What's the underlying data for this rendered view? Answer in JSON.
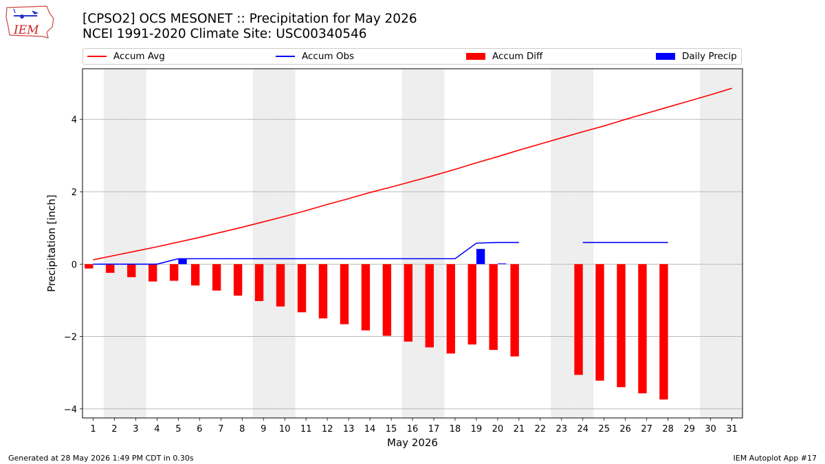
{
  "title_line1": "[CPSO2] OCS MESONET :: Precipitation for May 2026",
  "title_line2": "NCEI 1991-2020 Climate Site: USC00340546",
  "footer_left": "Generated at 28 May 2026 1:49 PM CDT in 0.30s",
  "footer_right": "IEM Autoplot App #17",
  "logo_text": "IEM",
  "legend": [
    {
      "label": "Accum Avg",
      "kind": "line",
      "color": "#ff0000"
    },
    {
      "label": "Accum Obs",
      "kind": "line",
      "color": "#0000ff"
    },
    {
      "label": "Accum Diff",
      "kind": "box",
      "color": "#ff0000"
    },
    {
      "label": "Daily Precip",
      "kind": "box",
      "color": "#0000ff"
    }
  ],
  "chart_data": {
    "type": "bar",
    "xlabel": "May 2026",
    "ylabel": "Precipitation [inch]",
    "xlim": [
      0.5,
      31.5
    ],
    "ylim": [
      -4.25,
      5.4
    ],
    "yticks": [
      -4,
      -2,
      0,
      2,
      4
    ],
    "ytick_labels": [
      "−4",
      "−2",
      "0",
      "2",
      "4"
    ],
    "x": [
      1,
      2,
      3,
      4,
      5,
      6,
      7,
      8,
      9,
      10,
      11,
      12,
      13,
      14,
      15,
      16,
      17,
      18,
      19,
      20,
      21,
      22,
      23,
      24,
      25,
      26,
      27,
      28,
      29,
      30,
      31
    ],
    "weekend_days": [
      2,
      3,
      9,
      10,
      16,
      17,
      23,
      24,
      30,
      31
    ],
    "grid": "horizontal",
    "series": [
      {
        "name": "Accum Avg",
        "type": "line",
        "color": "#ff0000",
        "values": [
          0.12,
          0.24,
          0.36,
          0.48,
          0.61,
          0.74,
          0.88,
          1.02,
          1.17,
          1.32,
          1.48,
          1.65,
          1.81,
          1.98,
          2.13,
          2.29,
          2.45,
          2.62,
          2.8,
          2.97,
          3.15,
          3.32,
          3.49,
          3.66,
          3.82,
          4.0,
          4.17,
          4.34,
          4.51,
          4.68,
          4.86
        ]
      },
      {
        "name": "Accum Obs",
        "type": "line",
        "color": "#0000ff",
        "values": [
          0.0,
          0.0,
          0.0,
          0.0,
          0.15,
          0.15,
          0.15,
          0.15,
          0.15,
          0.15,
          0.15,
          0.15,
          0.15,
          0.15,
          0.15,
          0.15,
          0.15,
          0.15,
          0.58,
          0.6,
          0.6,
          null,
          null,
          0.6,
          0.6,
          0.6,
          0.6,
          0.6,
          null,
          null,
          null
        ]
      },
      {
        "name": "Accum Diff",
        "type": "bar",
        "color": "#ff0000",
        "values": [
          -0.12,
          -0.24,
          -0.36,
          -0.48,
          -0.46,
          -0.59,
          -0.73,
          -0.87,
          -1.02,
          -1.17,
          -1.33,
          -1.5,
          -1.66,
          -1.83,
          -1.98,
          -2.14,
          -2.3,
          -2.47,
          -2.22,
          -2.37,
          -2.55,
          null,
          null,
          -3.06,
          -3.22,
          -3.4,
          -3.57,
          -3.74,
          null,
          null,
          null
        ]
      },
      {
        "name": "Daily Precip",
        "type": "bar",
        "color": "#0000ff",
        "values": [
          0,
          0,
          0,
          0,
          0.15,
          0,
          0,
          0,
          0,
          0,
          0,
          0,
          0,
          0,
          0,
          0,
          0,
          0,
          0.42,
          0.02,
          0,
          null,
          null,
          0,
          0,
          0,
          0,
          0,
          null,
          null,
          null
        ]
      }
    ]
  }
}
